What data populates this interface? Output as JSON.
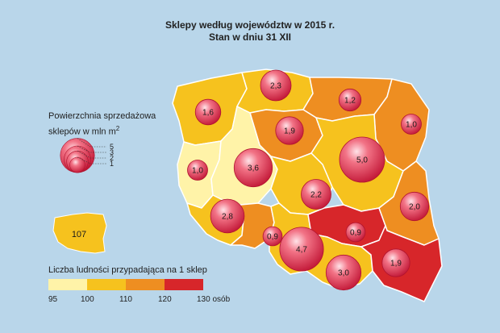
{
  "title": {
    "line1": "Sklepy według województw w 2015 r.",
    "line2": "Stan w dniu 31 XII"
  },
  "colors": {
    "background": "#b9d6ea",
    "class_95_100": "#fff3a8",
    "class_100_110": "#f6c21e",
    "class_110_120": "#ee8e21",
    "class_120_130": "#d7262a",
    "bubble": "#e6314b"
  },
  "bubble_legend": {
    "title_line1": "Powierzchnia sprzedażowa",
    "title_line2_prefix": "sklepów w mln m",
    "title_line2_sup": "2",
    "ticks": [
      "5",
      "3",
      "2",
      "1"
    ]
  },
  "country_inset": {
    "value": "107"
  },
  "population_legend": {
    "title": "Liczba ludności przypadająca na 1 sklep",
    "ticks": [
      "95",
      "100",
      "110",
      "120",
      "130 osób"
    ]
  },
  "regions": [
    {
      "name": "zachodniopomorskie",
      "value": "1,6",
      "area": 1.6,
      "class": "class_100_110"
    },
    {
      "name": "pomorskie",
      "value": "2,3",
      "area": 2.3,
      "class": "class_100_110"
    },
    {
      "name": "warmińsko-mazurskie",
      "value": "1,2",
      "area": 1.2,
      "class": "class_110_120"
    },
    {
      "name": "podlaskie",
      "value": "1,0",
      "area": 1.0,
      "class": "class_110_120"
    },
    {
      "name": "kujawsko-pomorskie",
      "value": "1,9",
      "area": 1.9,
      "class": "class_110_120"
    },
    {
      "name": "lubuskie",
      "value": "1,0",
      "area": 1.0,
      "class": "class_95_100"
    },
    {
      "name": "wielkopolskie",
      "value": "3,6",
      "area": 3.6,
      "class": "class_95_100"
    },
    {
      "name": "mazowieckie",
      "value": "5,0",
      "area": 5.0,
      "class": "class_100_110"
    },
    {
      "name": "łódzkie",
      "value": "2,2",
      "area": 2.2,
      "class": "class_100_110"
    },
    {
      "name": "dolnośląskie",
      "value": "2,8",
      "area": 2.8,
      "class": "class_100_110"
    },
    {
      "name": "opolskie",
      "value": "0,9",
      "area": 0.9,
      "class": "class_110_120"
    },
    {
      "name": "śląskie",
      "value": "4,7",
      "area": 4.7,
      "class": "class_100_110"
    },
    {
      "name": "świętokrzyskie",
      "value": "0,9",
      "area": 0.9,
      "class": "class_120_130"
    },
    {
      "name": "lubelskie",
      "value": "2,0",
      "area": 2.0,
      "class": "class_110_120"
    },
    {
      "name": "małopolskie",
      "value": "3,0",
      "area": 3.0,
      "class": "class_100_110"
    },
    {
      "name": "podkarpackie",
      "value": "1,9",
      "area": 1.9,
      "class": "class_120_130"
    }
  ]
}
